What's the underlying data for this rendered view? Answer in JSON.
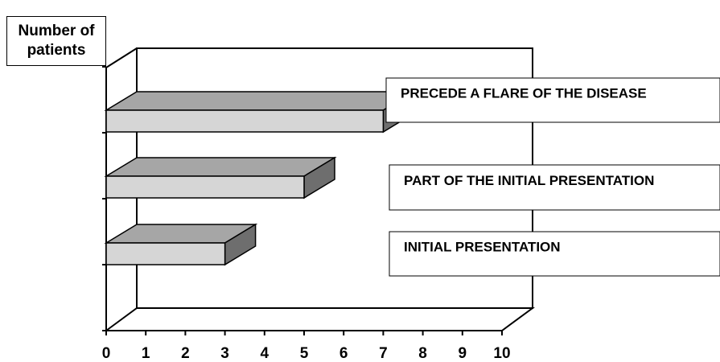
{
  "chart_data": {
    "type": "bar",
    "orientation": "horizontal",
    "style": "3d",
    "ylabel": "Number of patients",
    "xlabel": "",
    "title": "",
    "xlim": [
      0,
      10
    ],
    "xticks": [
      "0",
      "1",
      "2",
      "3",
      "4",
      "5",
      "6",
      "7",
      "8",
      "9",
      "10"
    ],
    "categories": [
      "PRECEDE A FLARE OF THE DISEASE",
      "PART OF THE INITIAL PRESENTATION",
      "INITIAL PRESENTATION"
    ],
    "values": [
      7,
      5,
      3
    ],
    "grid": false,
    "colors": {
      "bar_front": "#d6d6d6",
      "bar_top": "#a6a6a6",
      "bar_side": "#6e6e6e",
      "frame": "#000000"
    }
  }
}
